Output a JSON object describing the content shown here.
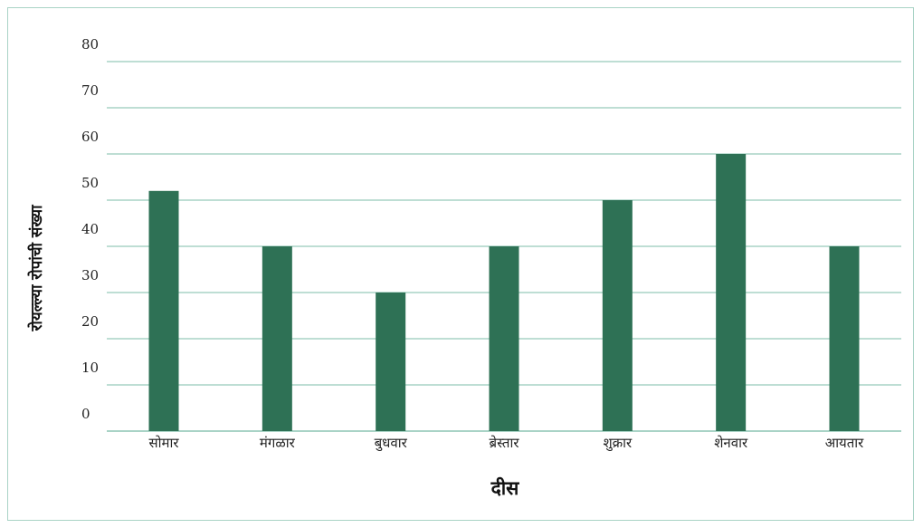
{
  "chart_data": {
    "type": "bar",
    "title": "",
    "xlabel": "दीस",
    "ylabel": "रोयल्ल्या रोपांची संख्या",
    "categories": [
      "सोमार",
      "मंगळार",
      "बुधवार",
      "ब्रेस्तार",
      "शुक्रार",
      "शेनवार",
      "आयतार"
    ],
    "values": [
      52,
      40,
      30,
      40,
      50,
      60,
      40
    ],
    "ylim": [
      0,
      80
    ],
    "yticks": [
      {
        "label": "0",
        "value": 0
      },
      {
        "label": "10",
        "value": 10
      },
      {
        "label": "20",
        "value": 20
      },
      {
        "label": "30",
        "value": 30
      },
      {
        "label": "40",
        "value": 40
      },
      {
        "label": "50",
        "value": 50
      },
      {
        "label": "60",
        "value": 60
      },
      {
        "label": "70",
        "value": 70
      },
      {
        "label": "80",
        "value": 80
      }
    ],
    "grid": true,
    "bar_color": "#2e7155",
    "grid_color": "#a9d3c6"
  }
}
